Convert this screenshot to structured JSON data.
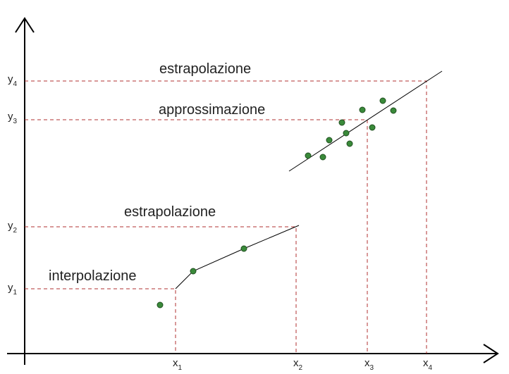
{
  "annotations": [
    "estrapolazione",
    "approssimazione",
    "estrapolazione",
    "interpolazione"
  ],
  "x_labels": [
    {
      "symbol": "x",
      "index": "1"
    },
    {
      "symbol": "x",
      "index": "2"
    },
    {
      "symbol": "x",
      "index": "3"
    },
    {
      "symbol": "x",
      "index": "4"
    }
  ],
  "y_labels": [
    {
      "symbol": "y",
      "index": "1"
    },
    {
      "symbol": "y",
      "index": "2"
    },
    {
      "symbol": "y",
      "index": "3"
    },
    {
      "symbol": "y",
      "index": "4"
    }
  ]
}
